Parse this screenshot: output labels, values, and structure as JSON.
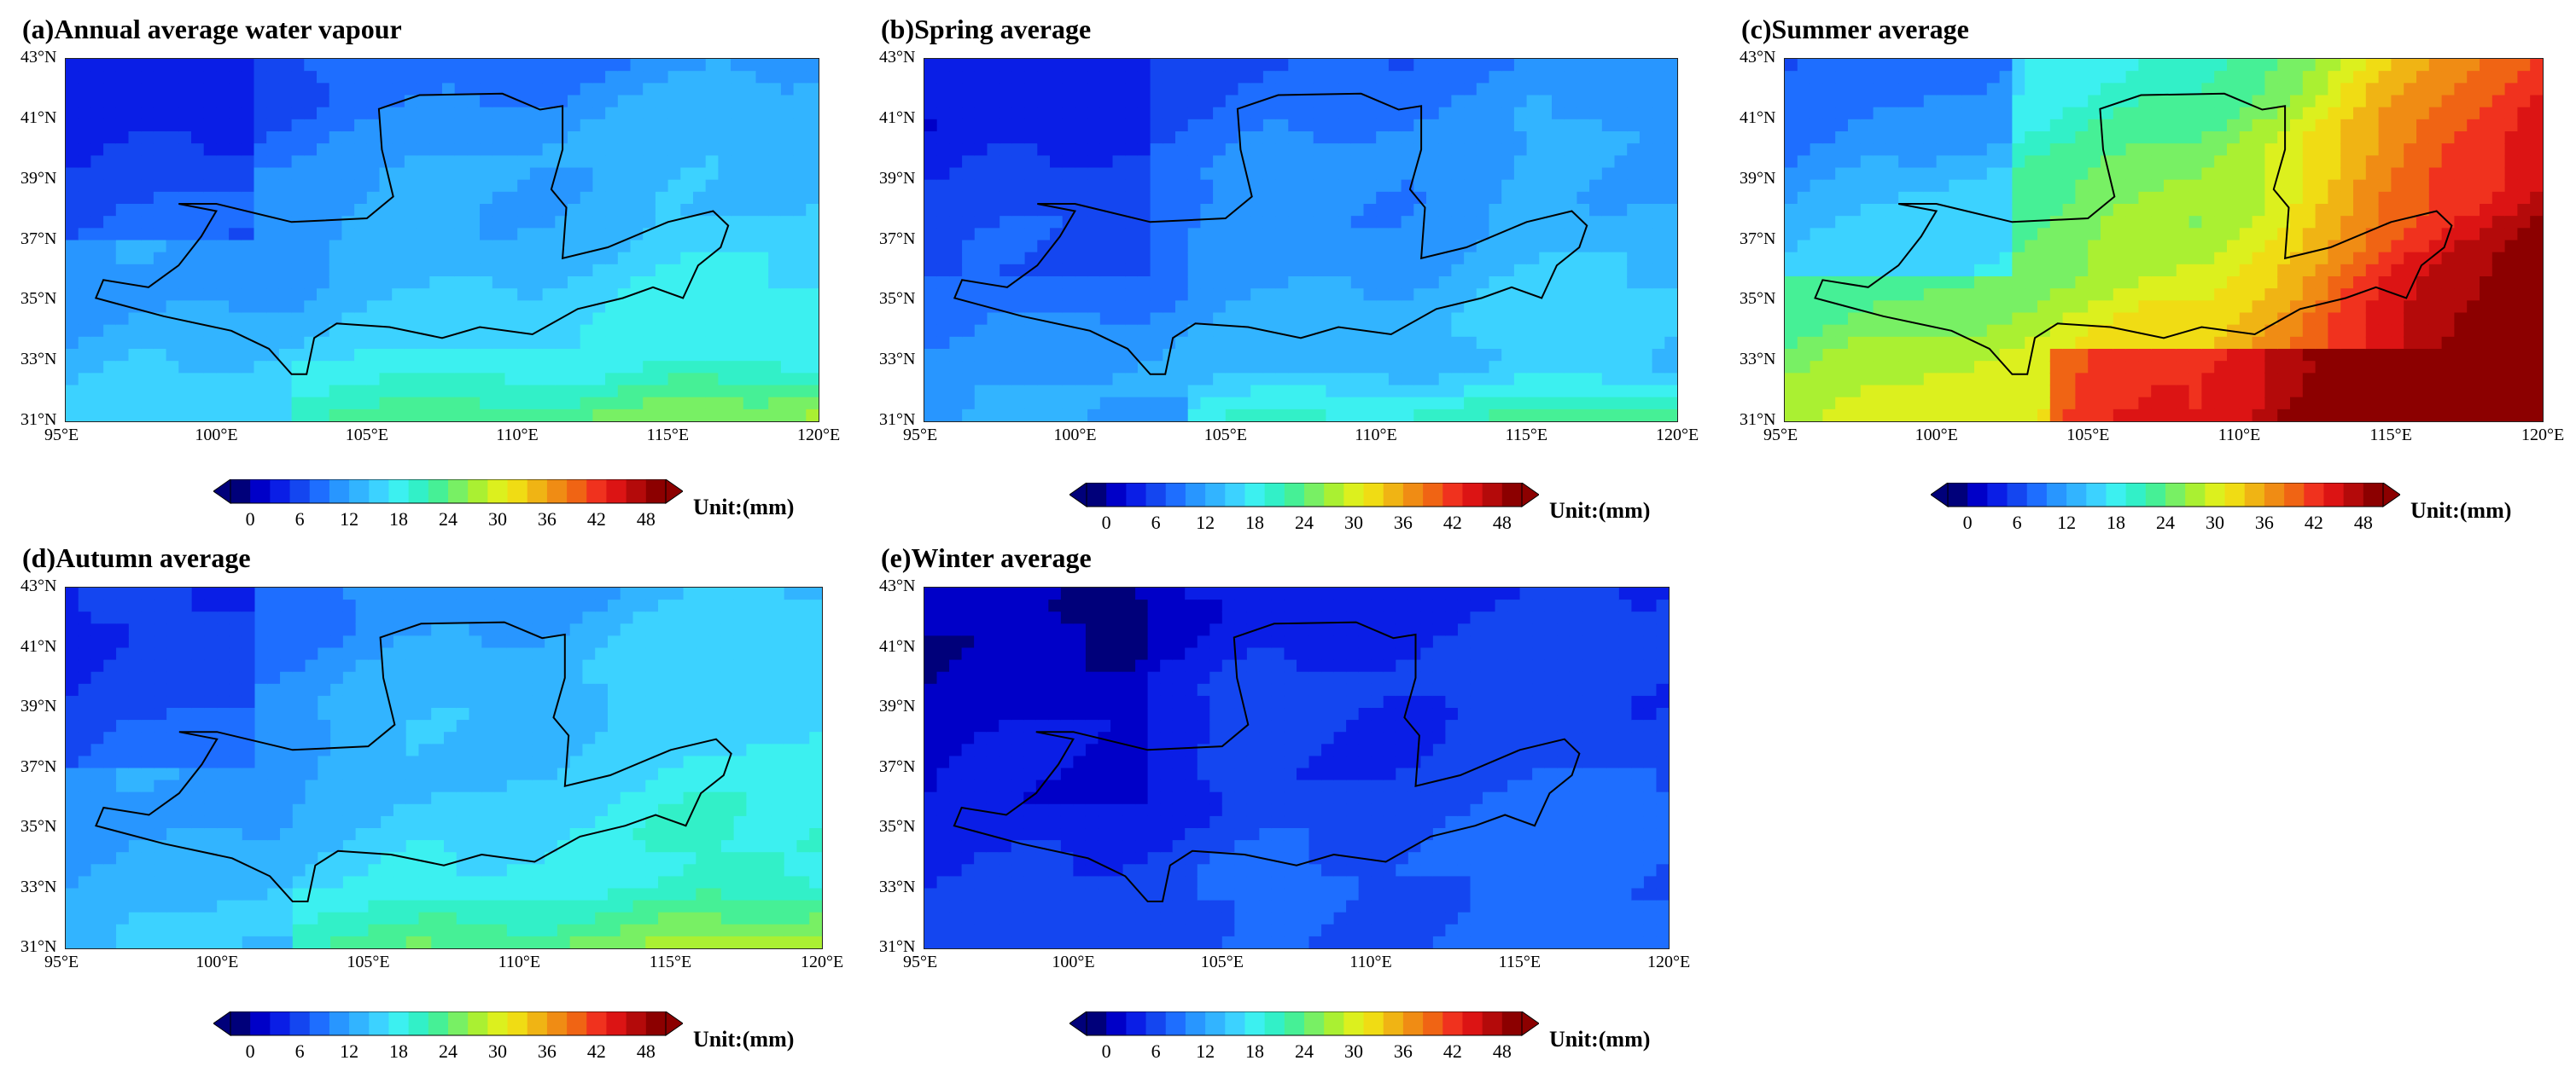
{
  "figure": {
    "panels": [
      {
        "id": "a",
        "title": "(a)Annual average water vapour",
        "season": "annual"
      },
      {
        "id": "b",
        "title": "(b)Spring average",
        "season": "spring"
      },
      {
        "id": "c",
        "title": "(c)Summer average",
        "season": "summer"
      },
      {
        "id": "d",
        "title": "(d)Autumn average",
        "season": "autumn"
      },
      {
        "id": "e",
        "title": "(e)Winter average",
        "season": "winter"
      }
    ],
    "x_ticks": [
      "95°E",
      "100°E",
      "105°E",
      "110°E",
      "115°E",
      "120°E"
    ],
    "y_ticks": [
      "43°N",
      "41°N",
      "39°N",
      "37°N",
      "35°N",
      "33°N",
      "31°N"
    ],
    "lon_range": [
      95,
      120
    ],
    "lat_range": [
      31,
      43
    ],
    "colorbar": {
      "ticks": [
        "0",
        "6",
        "12",
        "18",
        "24",
        "30",
        "36",
        "42",
        "48"
      ],
      "unit_label": "Unit:(mm)",
      "range": [
        0,
        48
      ],
      "colors": [
        "#00007a",
        "#0000c8",
        "#0a1ee6",
        "#1446f0",
        "#1e6eff",
        "#2896ff",
        "#32b4ff",
        "#3cd2ff",
        "#3cf0f0",
        "#32f0c8",
        "#46f096",
        "#78f064",
        "#aaf032",
        "#dcf01e",
        "#f0dc14",
        "#f0b414",
        "#f08c14",
        "#f06414",
        "#f0321e",
        "#dc1414",
        "#b40a0a",
        "#8c0000"
      ]
    },
    "seasonal_means_mm": {
      "annual": 13,
      "spring": 10,
      "summer": 26,
      "autumn": 13,
      "winter": 5
    }
  }
}
